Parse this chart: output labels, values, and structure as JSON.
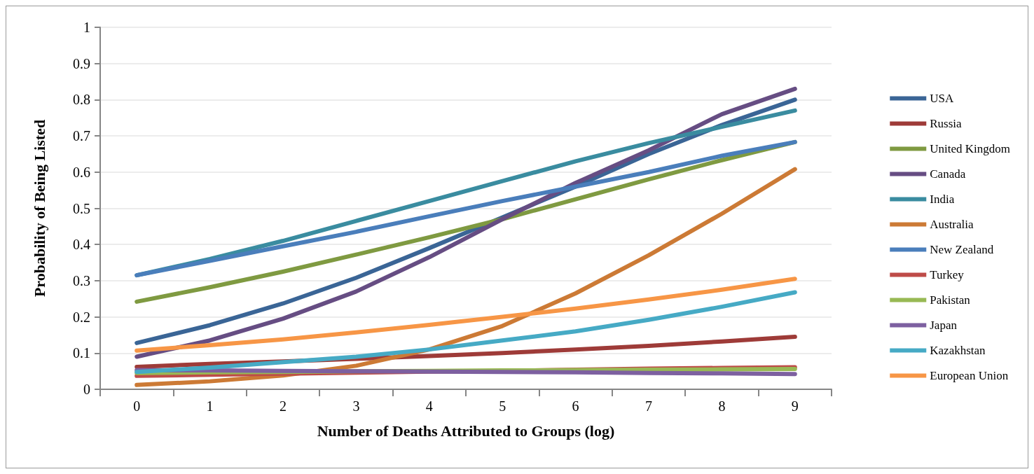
{
  "chart_data": {
    "type": "line",
    "xlabel": "Number of Deaths Attributed to Groups (log)",
    "ylabel": "Probability of Being Listed",
    "categories": [
      "0",
      "1",
      "2",
      "3",
      "4",
      "5",
      "6",
      "7",
      "8",
      "9"
    ],
    "ylim": [
      0,
      1
    ],
    "yticks": [
      0,
      0.1,
      0.2,
      0.3,
      0.4,
      0.5,
      0.6,
      0.7,
      0.8,
      0.9,
      1
    ],
    "grid": "y",
    "legend": "right",
    "marker": "none",
    "line_style": "solid",
    "series": [
      {
        "name": "USA",
        "color": "#3a6596",
        "values": [
          0.128,
          0.177,
          0.237,
          0.308,
          0.39,
          0.475,
          0.56,
          0.65,
          0.73,
          0.8
        ]
      },
      {
        "name": "Russia",
        "color": "#9e3b38",
        "values": [
          0.062,
          0.07,
          0.077,
          0.084,
          0.092,
          0.1,
          0.11,
          0.12,
          0.132,
          0.145
        ]
      },
      {
        "name": "United Kingdom",
        "color": "#7f9a41",
        "values": [
          0.242,
          0.282,
          0.325,
          0.372,
          0.42,
          0.47,
          0.525,
          0.58,
          0.633,
          0.683
        ]
      },
      {
        "name": "Canada",
        "color": "#664d83",
        "values": [
          0.09,
          0.135,
          0.195,
          0.27,
          0.365,
          0.47,
          0.57,
          0.66,
          0.76,
          0.83
        ]
      },
      {
        "name": "India",
        "color": "#3a8ca0",
        "values": [
          0.315,
          0.36,
          0.41,
          0.465,
          0.52,
          0.575,
          0.63,
          0.68,
          0.725,
          0.77
        ]
      },
      {
        "name": "Australia",
        "color": "#cc7a35",
        "values": [
          0.012,
          0.022,
          0.038,
          0.065,
          0.11,
          0.175,
          0.265,
          0.37,
          0.485,
          0.608
        ]
      },
      {
        "name": "New Zealand",
        "color": "#4a7ebb",
        "values": [
          0.315,
          0.355,
          0.395,
          0.435,
          0.478,
          0.52,
          0.56,
          0.6,
          0.645,
          0.683
        ]
      },
      {
        "name": "Turkey",
        "color": "#be4b48",
        "values": [
          0.037,
          0.04,
          0.043,
          0.046,
          0.049,
          0.051,
          0.054,
          0.057,
          0.059,
          0.061
        ]
      },
      {
        "name": "Pakistan",
        "color": "#98b954",
        "values": [
          0.045,
          0.047,
          0.048,
          0.05,
          0.051,
          0.052,
          0.053,
          0.054,
          0.055,
          0.056
        ]
      },
      {
        "name": "Japan",
        "color": "#7d60a0",
        "values": [
          0.053,
          0.052,
          0.051,
          0.05,
          0.049,
          0.048,
          0.047,
          0.045,
          0.044,
          0.042
        ]
      },
      {
        "name": "Kazakhstan",
        "color": "#46aac5",
        "values": [
          0.048,
          0.06,
          0.075,
          0.09,
          0.11,
          0.135,
          0.16,
          0.192,
          0.228,
          0.268
        ]
      },
      {
        "name": "European Union",
        "color": "#f79646",
        "values": [
          0.107,
          0.122,
          0.138,
          0.157,
          0.178,
          0.2,
          0.223,
          0.248,
          0.275,
          0.305
        ]
      }
    ]
  }
}
